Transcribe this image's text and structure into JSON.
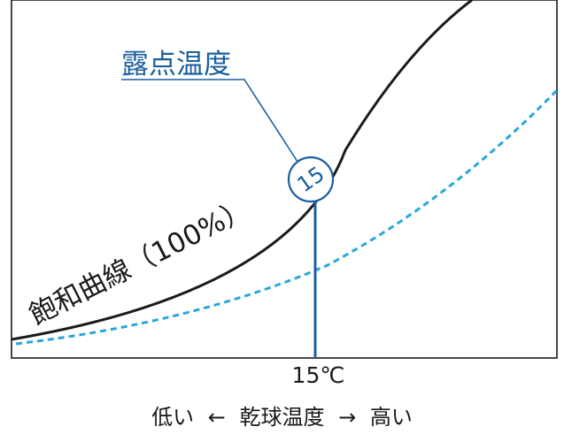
{
  "labels": {
    "dew_point": "露点温度",
    "saturation_curve": "飽和曲線（100%）",
    "marker_value": "15",
    "temperature_tick": "15℃"
  },
  "x_axis": {
    "low": "低い",
    "left_arrow": "←",
    "name": "乾球温度",
    "right_arrow": "→",
    "high": "高い"
  },
  "colors": {
    "accent": "#1a5fa0",
    "dashed": "#29a7d8",
    "line": "#1a1a1a"
  }
}
